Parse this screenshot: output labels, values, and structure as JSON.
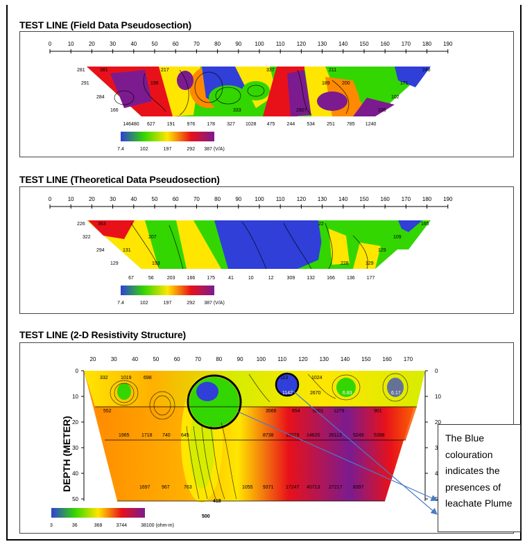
{
  "panels": [
    {
      "title": "TEST LINE (Field Data Pseudosection)",
      "scale_ticks": [
        "0",
        "10",
        "20",
        "30",
        "40",
        "50",
        "60",
        "70",
        "80",
        "90",
        "100",
        "110",
        "120",
        "130",
        "140",
        "150",
        "160",
        "170",
        "180",
        "190"
      ],
      "legend_labels": [
        "7.4",
        "102",
        "197",
        "292",
        "387 (V/A)"
      ],
      "bottom_values": [
        "146480",
        "627",
        "191",
        "976",
        "178",
        "327",
        "1028",
        "475",
        "244",
        "534",
        "251",
        "785",
        "1240"
      ],
      "row1_values": [
        "281",
        "381",
        "217",
        "337",
        "211",
        "248"
      ],
      "row2_values": [
        "291",
        "196",
        "189",
        "200",
        "171"
      ],
      "row3_values": [
        "284",
        "102"
      ],
      "row4_values": [
        "166",
        "333",
        "2907",
        "105"
      ]
    },
    {
      "title": "TEST LINE (Theoretical Data Pseudosection)",
      "scale_ticks": [
        "0",
        "10",
        "20",
        "30",
        "40",
        "50",
        "60",
        "70",
        "80",
        "90",
        "100",
        "110",
        "120",
        "130",
        "140",
        "150",
        "160",
        "170",
        "180",
        "190"
      ],
      "legend_labels": [
        "7.4",
        "102",
        "197",
        "292",
        "387 (V/A)"
      ],
      "bottom_values": [
        "67",
        "56",
        "203",
        "166",
        "175",
        "41",
        "10",
        "12",
        "309",
        "132",
        "166",
        "136",
        "177"
      ],
      "row1_values": [
        "226",
        "363",
        "22",
        "165"
      ],
      "row2_values": [
        "322",
        "207",
        "109"
      ],
      "row3_values": [
        "294",
        "131",
        "129"
      ],
      "row4_values": [
        "129",
        "193",
        "228",
        "129"
      ]
    },
    {
      "title": "TEST LINE (2-D Resistivity Structure)",
      "x_ticks": [
        "20",
        "30",
        "40",
        "50",
        "60",
        "70",
        "80",
        "90",
        "100",
        "110",
        "120",
        "130",
        "140",
        "150",
        "160",
        "170"
      ],
      "depth_ticks": [
        "0",
        "10",
        "20",
        "30",
        "40",
        "50"
      ],
      "ylabel": "DEPTH (METER)",
      "legend_labels": [
        "3",
        "36",
        "368",
        "3744",
        "38100 (ohm-m)"
      ],
      "row1_values": [
        "332",
        "1019",
        "698",
        "113",
        "1024"
      ],
      "row2_values": [
        "1142",
        "2670",
        "6.83",
        "6.17"
      ],
      "row3_values": [
        "552",
        "3566",
        "654",
        "6201",
        "1279",
        "901"
      ],
      "row4_values": [
        "1965",
        "1718",
        "740",
        "645",
        "8738",
        "13079",
        "14620",
        "26113",
        "5249",
        "5398"
      ],
      "row5_values": [
        "1697",
        "967",
        "763",
        "1055",
        "9371",
        "17247",
        "40713",
        "27217",
        "8397"
      ],
      "bottom_labels": [
        "500",
        "418"
      ]
    }
  ],
  "note": {
    "text": "The Blue colouration indicates the presences of leachate Plume"
  },
  "colors": {
    "blue": "#2f3fd8",
    "green": "#33d600",
    "yellow": "#ffe600",
    "orange": "#ff8a00",
    "red": "#e8111a",
    "purple": "#7b1b8f",
    "arrow": "#4a7ac8"
  },
  "chart_data": [
    {
      "type": "heatmap",
      "title": "TEST LINE (Field Data Pseudosection)",
      "x_range": [
        0,
        190
      ],
      "colorbar": {
        "values": [
          7.4,
          102,
          197,
          292,
          387
        ],
        "unit": "V/A"
      },
      "bottom_row_values": [
        146480,
        627,
        191,
        976,
        178,
        327,
        1028,
        475,
        244,
        534,
        251,
        785,
        1240
      ]
    },
    {
      "type": "heatmap",
      "title": "TEST LINE (Theoretical Data Pseudosection)",
      "x_range": [
        0,
        190
      ],
      "colorbar": {
        "values": [
          7.4,
          102,
          197,
          292,
          387
        ],
        "unit": "V/A"
      },
      "bottom_row_values": [
        67,
        56,
        203,
        166,
        175,
        41,
        10,
        12,
        309,
        132,
        166,
        136,
        177
      ]
    },
    {
      "type": "heatmap",
      "title": "TEST LINE (2-D Resistivity Structure)",
      "x_range": [
        15,
        175
      ],
      "y_range": [
        0,
        50
      ],
      "ylabel": "DEPTH (METER)",
      "colorbar": {
        "values": [
          3,
          36,
          368,
          3744,
          38100
        ],
        "unit": "ohm-m"
      }
    }
  ]
}
